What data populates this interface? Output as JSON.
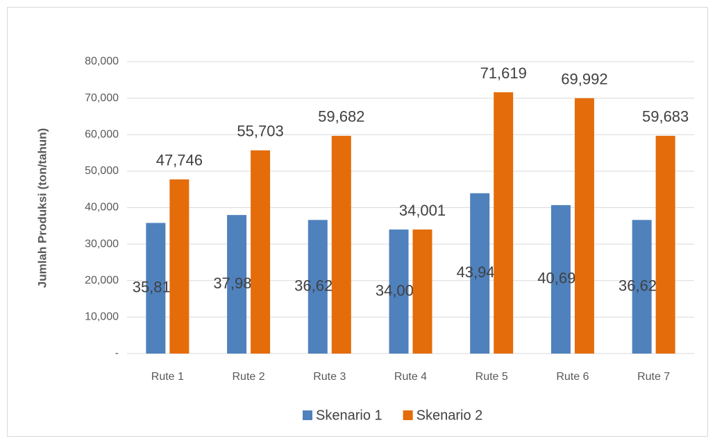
{
  "chart_data": {
    "type": "bar",
    "y_axis_label": "Jumlah Produksi (ton/tahun)",
    "categories": [
      "Rute 1",
      "Rute 2",
      "Rute 3",
      "Rute 4",
      "Rute 5",
      "Rute 6",
      "Rute 7"
    ],
    "series": [
      {
        "name": "Skenario 1",
        "color": "#4f81bd",
        "values": [
          35810,
          37980,
          36624,
          34001,
          43948,
          40693,
          36624
        ],
        "value_labels": [
          "35,810",
          "37,980",
          "36,624",
          "34,001",
          "43,948",
          "40,693",
          "36,624"
        ]
      },
      {
        "name": "Skenario 2",
        "color": "#e46c0a",
        "values": [
          47746,
          55703,
          59682,
          34001,
          71619,
          69992,
          59683
        ],
        "value_labels": [
          "47,746",
          "55,703",
          "59,682",
          "34,001",
          "71,619",
          "69,992",
          "59,683"
        ]
      }
    ],
    "ylim": [
      0,
      80000
    ],
    "yticks": [
      {
        "value": 0,
        "label": "-"
      },
      {
        "value": 10000,
        "label": "10,000"
      },
      {
        "value": 20000,
        "label": "20,000"
      },
      {
        "value": 30000,
        "label": "30,000"
      },
      {
        "value": 40000,
        "label": "40,000"
      },
      {
        "value": 50000,
        "label": "50,000"
      },
      {
        "value": 60000,
        "label": "60,000"
      },
      {
        "value": 70000,
        "label": "70,000"
      },
      {
        "value": 80000,
        "label": "80,000"
      }
    ],
    "grid": true,
    "legend": "bottom"
  }
}
